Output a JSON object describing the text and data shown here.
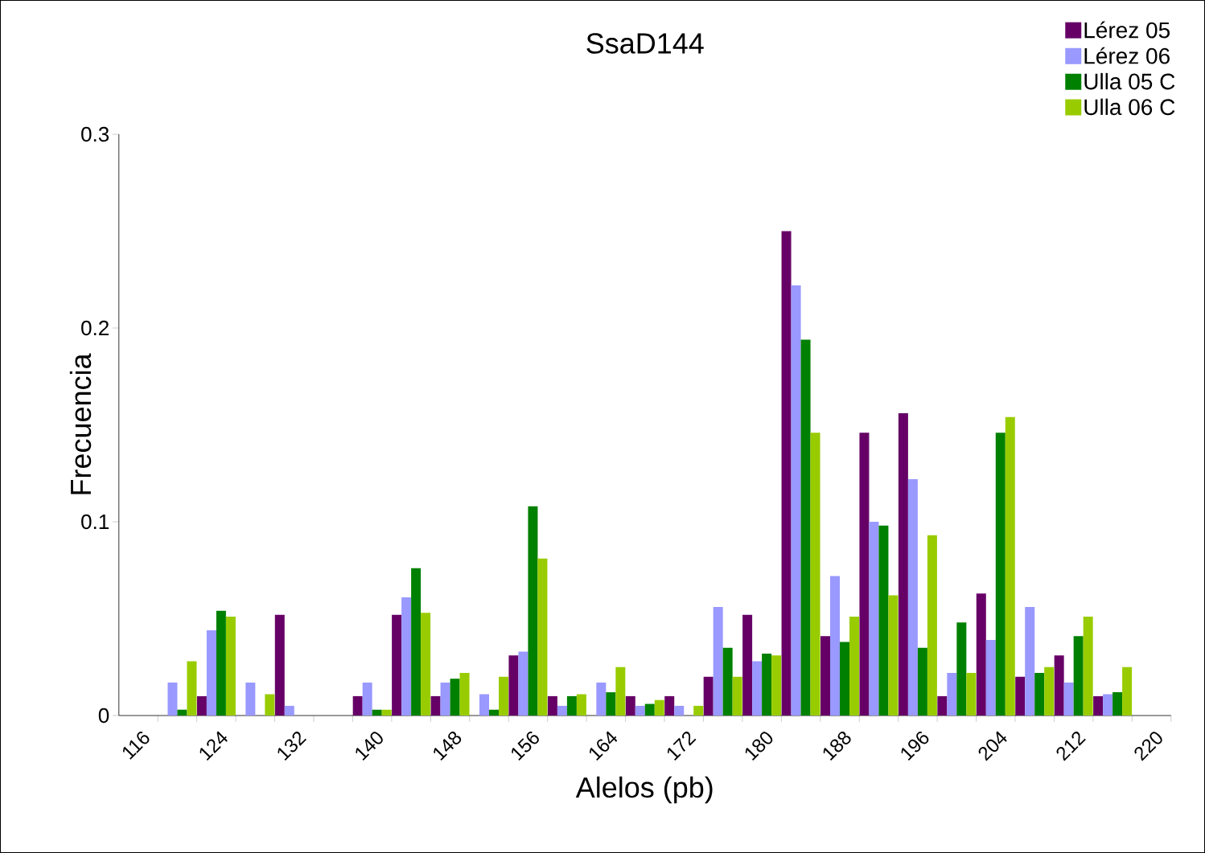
{
  "chart_data": {
    "type": "bar",
    "title": "SsaD144",
    "xlabel": "Alelos (pb)",
    "ylabel": "Frecuencia",
    "categories": [
      "116",
      null,
      "124",
      null,
      "132",
      null,
      "140",
      null,
      "148",
      null,
      "156",
      null,
      "164",
      null,
      "172",
      null,
      "180",
      null,
      "188",
      null,
      "196",
      null,
      "204",
      null,
      "212",
      null,
      "220"
    ],
    "series": [
      {
        "name": "Lérez 05",
        "color": "#660066",
        "values": [
          0,
          0,
          0.01,
          0,
          0.052,
          0,
          0.01,
          0.052,
          0.01,
          0,
          0.031,
          0.01,
          0,
          0.01,
          0.01,
          0.02,
          0.052,
          0.25,
          0.041,
          0.146,
          0.156,
          0.01,
          0.063,
          0.02,
          0.031,
          0.01,
          0
        ]
      },
      {
        "name": "Lérez 06",
        "color": "#9999ff",
        "values": [
          0,
          0.017,
          0.044,
          0.017,
          0.005,
          0,
          0.017,
          0.061,
          0.017,
          0.011,
          0.033,
          0.005,
          0.017,
          0.005,
          0.005,
          0.056,
          0.028,
          0.222,
          0.072,
          0.1,
          0.122,
          0.022,
          0.039,
          0.056,
          0.017,
          0.011,
          0
        ]
      },
      {
        "name": "Ulla 05 C",
        "color": "#008000",
        "values": [
          0,
          0.003,
          0.054,
          0,
          0,
          0,
          0.003,
          0.076,
          0.019,
          0.003,
          0.108,
          0.01,
          0.012,
          0.006,
          0,
          0.035,
          0.032,
          0.194,
          0.038,
          0.098,
          0.035,
          0.048,
          0.146,
          0.022,
          0.041,
          0.012,
          0
        ]
      },
      {
        "name": "Ulla 06 C",
        "color": "#99cc00",
        "values": [
          0,
          0.028,
          0.051,
          0.011,
          0,
          0,
          0.003,
          0.053,
          0.022,
          0.02,
          0.081,
          0.011,
          0.025,
          0.008,
          0.005,
          0.02,
          0.031,
          0.146,
          0.051,
          0.062,
          0.093,
          0.022,
          0.154,
          0.025,
          0.051,
          0.025,
          0
        ]
      }
    ],
    "ylim": [
      0,
      0.3
    ],
    "yticks": [
      0,
      0.1,
      0.2,
      0.3
    ],
    "grid": false,
    "legend": "top right"
  }
}
